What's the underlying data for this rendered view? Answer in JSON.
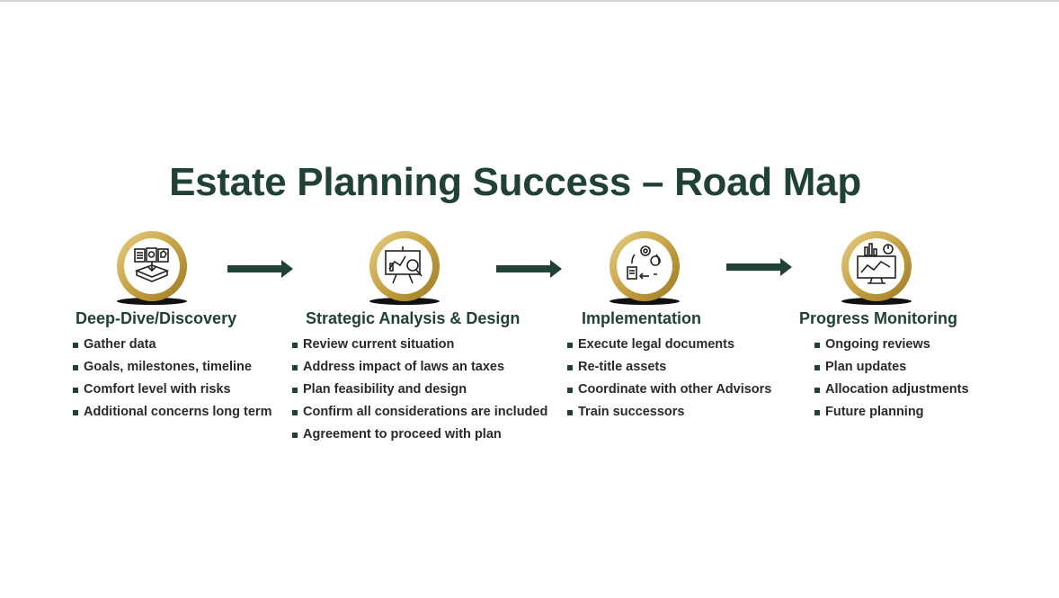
{
  "title": "Estate Planning Success – Road Map",
  "colors": {
    "primary_green": "#1f4136",
    "gold": "#c9a94a",
    "text": "#2a2a2a"
  },
  "steps": [
    {
      "icon": "documents-inbox-icon",
      "title": "Deep-Dive/Discovery",
      "bullets": [
        "Gather data",
        "Goals, milestones, timeline",
        "Comfort level with risks",
        "Additional concerns long term"
      ]
    },
    {
      "icon": "presentation-analysis-icon",
      "title": "Strategic Analysis & Design",
      "bullets": [
        "Review current situation",
        "Address impact of laws an taxes",
        "Plan feasibility and design",
        "Confirm all considerations are included",
        "Agreement to proceed with plan"
      ]
    },
    {
      "icon": "process-cycle-icon",
      "title": "Implementation",
      "bullets": [
        "Execute legal documents",
        "Re-title assets",
        "Coordinate with other Advisors",
        "Train successors"
      ]
    },
    {
      "icon": "monitor-dashboard-icon",
      "title": "Progress Monitoring",
      "bullets": [
        "Ongoing reviews",
        "Plan updates",
        "Allocation adjustments",
        "Future planning"
      ]
    }
  ]
}
